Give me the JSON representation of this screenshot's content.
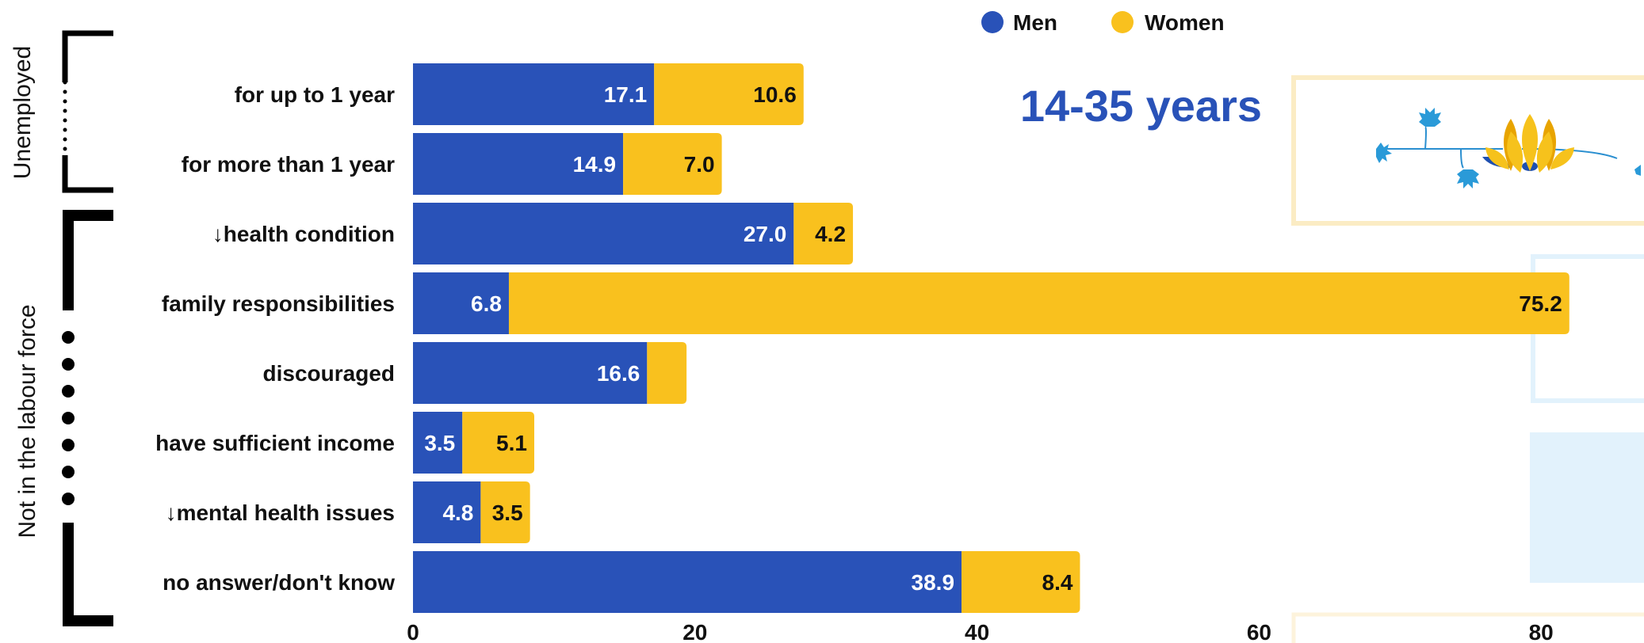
{
  "chart_data": {
    "type": "bar",
    "orientation": "horizontal",
    "stacked": true,
    "title": "14-35 years",
    "categories": [
      "for up to 1 year",
      "for more than 1 year",
      "↓health condition",
      "family responsibilities",
      "discouraged",
      "have sufficient income",
      "↓mental health issues",
      "no answer/don't know"
    ],
    "series": [
      {
        "name": "Men",
        "color": "#2952b8",
        "values": [
          17.1,
          14.9,
          27.0,
          6.8,
          16.6,
          3.5,
          4.8,
          38.9
        ],
        "labels": [
          "17.1",
          "14.9",
          "27.0",
          "6.8",
          "16.6",
          "3.5",
          "4.8",
          "38.9"
        ]
      },
      {
        "name": "Women",
        "color": "#f9c11e",
        "values": [
          10.6,
          7.0,
          4.2,
          75.2,
          2.8,
          5.1,
          3.5,
          8.4
        ],
        "labels": [
          "10.6",
          "7.0",
          "4.2",
          "75.2",
          "",
          "5.1",
          "3.5",
          "8.4"
        ]
      }
    ],
    "groups": [
      {
        "label": "Unemployed",
        "categories": [
          0,
          1
        ]
      },
      {
        "label": "Not in the labour force",
        "categories": [
          2,
          3,
          4,
          5,
          6,
          7
        ]
      }
    ],
    "xticks": [
      0,
      20,
      40,
      60,
      80
    ],
    "xlim": [
      0,
      80
    ],
    "xlabel": "",
    "ylabel": "",
    "legend_position": "top",
    "grid": false
  }
}
